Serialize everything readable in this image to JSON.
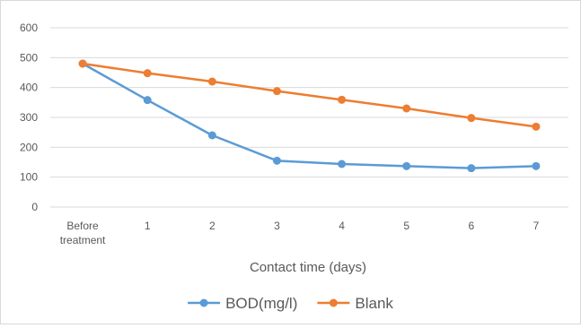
{
  "chart_data": {
    "type": "line",
    "categories": [
      [
        "Before",
        "treatment"
      ],
      "1",
      "2",
      "3",
      "4",
      "5",
      "6",
      "7"
    ],
    "series": [
      {
        "name": "BOD(mg/l)",
        "color": "#5b9bd5",
        "values": [
          480,
          358,
          240,
          155,
          144,
          137,
          130,
          137
        ]
      },
      {
        "name": "Blank",
        "color": "#ed7d31",
        "values": [
          480,
          448,
          420,
          388,
          359,
          330,
          298,
          269
        ]
      }
    ],
    "xlabel": "Contact time (days)",
    "ylabel": "",
    "ylim": [
      0,
      600
    ],
    "yticks": [
      0,
      100,
      200,
      300,
      400,
      500,
      600
    ],
    "grid": true,
    "legend": "bottom"
  }
}
